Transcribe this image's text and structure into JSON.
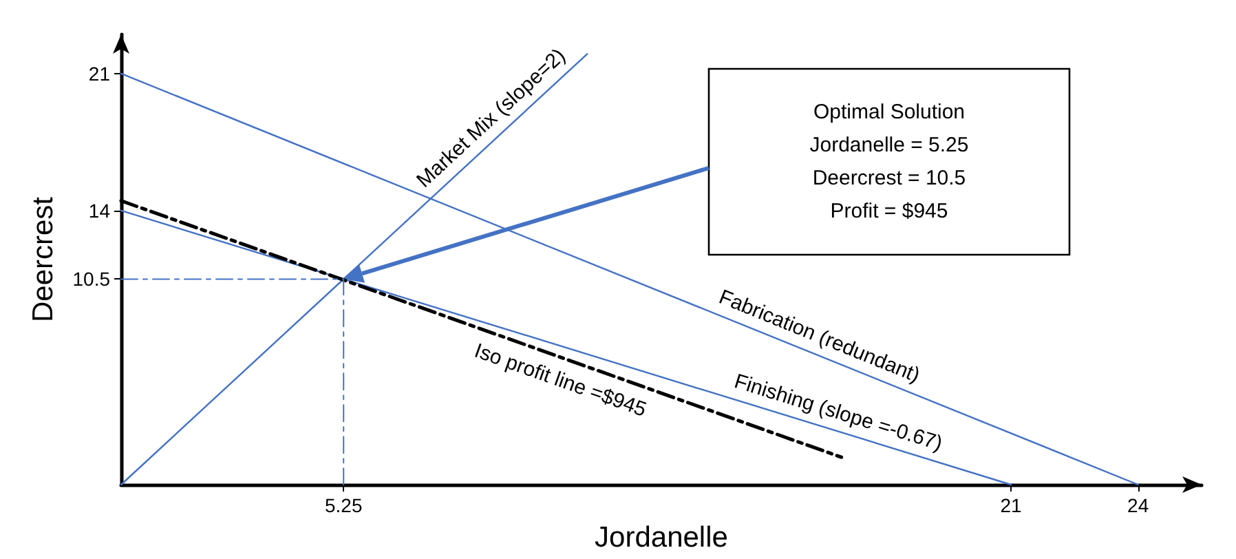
{
  "chart_data": {
    "type": "line",
    "xlabel": "Jordanelle",
    "ylabel": "Deercrest",
    "xlim": [
      0,
      25.5
    ],
    "ylim": [
      0,
      23
    ],
    "xticks": [
      5.25,
      21,
      24
    ],
    "yticks": [
      10.5,
      14,
      21
    ],
    "grid": false,
    "legend": false,
    "marker": "none",
    "series": [
      {
        "name": "Fabrication (redundant)",
        "color": "#4472c4",
        "x": [
          0,
          24
        ],
        "values": [
          21,
          0
        ],
        "line_style": "solid"
      },
      {
        "name": "Finishing (slope =-0.67)",
        "color": "#4472c4",
        "x": [
          0,
          21
        ],
        "values": [
          14,
          0
        ],
        "line_style": "solid"
      },
      {
        "name": "Market Mix (slope=2)",
        "color": "#4472c4",
        "x": [
          0,
          11
        ],
        "values": [
          0,
          22
        ],
        "line_style": "solid"
      },
      {
        "name": "Iso profit line =$945",
        "color": "#000000",
        "x": [
          0,
          17
        ],
        "values": [
          14.5,
          1.4
        ],
        "line_style": "dashed"
      },
      {
        "color": "#4472c4",
        "x": [
          0,
          5.25,
          5.25
        ],
        "values": [
          10.5,
          10.5,
          0
        ],
        "line_style": "dashed"
      }
    ],
    "annotations": [
      "Optimal Solution\nJordanelle = 5.25\nDeercrest = 10.5\nProfit = $945"
    ]
  }
}
